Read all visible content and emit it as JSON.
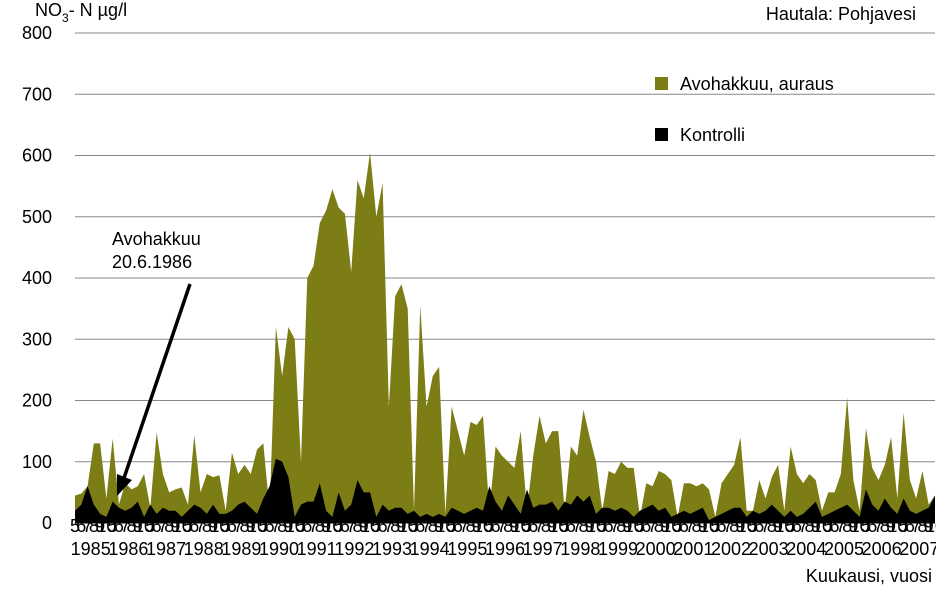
{
  "chart_data": {
    "type": "area",
    "title": "Hautala: Pohjavesi",
    "y_label": [
      "NO",
      "3",
      "- N µg/l"
    ],
    "x_label": "Kuukausi, vuosi",
    "annotation": [
      "Avohakkuu",
      "20.6.1986"
    ],
    "years": [
      "1985",
      "1986",
      "1987",
      "1988",
      "1989",
      "1990",
      "1991",
      "1992",
      "1993",
      "1994",
      "1995",
      "1996",
      "1997",
      "1998",
      "1999",
      "2000",
      "2001",
      "2002",
      "2003",
      "2004",
      "2005",
      "2006",
      "2007"
    ],
    "categories": [
      "5",
      "6",
      "7",
      "8",
      "9",
      "10",
      "5",
      "6",
      "7",
      "8",
      "9",
      "10",
      "5",
      "6",
      "7",
      "8",
      "9",
      "10",
      "5",
      "6",
      "7",
      "8",
      "9",
      "10",
      "5",
      "6",
      "7",
      "8",
      "9",
      "10",
      "5",
      "6",
      "7",
      "8",
      "9",
      "10",
      "5",
      "6",
      "7",
      "8",
      "9",
      "10",
      "5",
      "6",
      "7",
      "8",
      "9",
      "10",
      "5",
      "6",
      "7",
      "8",
      "9",
      "10",
      "5",
      "6",
      "7",
      "8",
      "9",
      "10",
      "5",
      "6",
      "7",
      "8",
      "9",
      "10",
      "5",
      "6",
      "7",
      "8",
      "9",
      "10",
      "5",
      "6",
      "7",
      "8",
      "9",
      "10",
      "5",
      "6",
      "7",
      "8",
      "9",
      "10",
      "5",
      "6",
      "7",
      "8",
      "9",
      "10",
      "5",
      "6",
      "7",
      "8",
      "9",
      "10",
      "5",
      "6",
      "7",
      "8",
      "9",
      "10",
      "5",
      "6",
      "7",
      "8",
      "9",
      "10",
      "5",
      "6",
      "7",
      "8",
      "9",
      "10",
      "5",
      "6",
      "7",
      "8",
      "9",
      "10",
      "5",
      "6",
      "7",
      "8",
      "9",
      "10",
      "5",
      "6",
      "7",
      "8",
      "9",
      "10",
      "5",
      "6",
      "7",
      "8",
      "9",
      "10"
    ],
    "series": [
      {
        "name": "Avohakkuu, auraus",
        "color": "#7d7d16",
        "values": [
          45,
          48,
          60,
          130,
          130,
          40,
          138,
          30,
          65,
          55,
          60,
          80,
          25,
          148,
          80,
          50,
          55,
          58,
          30,
          143,
          50,
          80,
          75,
          78,
          20,
          115,
          80,
          95,
          80,
          120,
          130,
          20,
          320,
          240,
          320,
          300,
          100,
          400,
          420,
          490,
          510,
          545,
          515,
          505,
          410,
          560,
          530,
          605,
          500,
          555,
          190,
          370,
          390,
          350,
          20,
          355,
          190,
          240,
          255,
          15,
          190,
          150,
          110,
          165,
          160,
          175,
          20,
          125,
          110,
          100,
          90,
          150,
          20,
          110,
          175,
          130,
          150,
          150,
          20,
          125,
          110,
          185,
          140,
          100,
          20,
          85,
          80,
          100,
          90,
          90,
          10,
          65,
          60,
          85,
          80,
          70,
          10,
          65,
          65,
          60,
          65,
          55,
          10,
          65,
          80,
          95,
          140,
          20,
          20,
          70,
          40,
          75,
          95,
          20,
          125,
          80,
          65,
          80,
          70,
          20,
          50,
          50,
          80,
          205,
          70,
          20,
          155,
          90,
          70,
          95,
          140,
          40,
          180,
          70,
          40,
          85,
          30,
          45
        ]
      },
      {
        "name": "Kontrolli",
        "color": "#000000",
        "values": [
          20,
          30,
          60,
          30,
          15,
          10,
          35,
          25,
          20,
          25,
          35,
          10,
          30,
          15,
          25,
          20,
          20,
          10,
          20,
          30,
          25,
          15,
          30,
          15,
          15,
          20,
          30,
          35,
          25,
          15,
          40,
          60,
          105,
          100,
          75,
          10,
          30,
          35,
          35,
          65,
          20,
          10,
          50,
          20,
          30,
          70,
          50,
          50,
          10,
          30,
          20,
          25,
          25,
          15,
          20,
          10,
          15,
          10,
          15,
          10,
          25,
          20,
          15,
          20,
          25,
          20,
          60,
          35,
          20,
          45,
          30,
          15,
          55,
          25,
          30,
          30,
          35,
          20,
          35,
          30,
          45,
          35,
          45,
          15,
          25,
          25,
          20,
          25,
          20,
          10,
          20,
          25,
          30,
          20,
          25,
          10,
          15,
          20,
          15,
          20,
          25,
          5,
          10,
          15,
          20,
          25,
          25,
          10,
          20,
          15,
          20,
          30,
          20,
          10,
          20,
          10,
          15,
          25,
          35,
          10,
          15,
          20,
          25,
          30,
          20,
          10,
          55,
          30,
          20,
          40,
          25,
          15,
          40,
          20,
          15,
          20,
          25,
          45
        ]
      }
    ],
    "ylim": [
      0,
      800
    ],
    "yticks": [
      0,
      100,
      200,
      300,
      400,
      500,
      600,
      700,
      800
    ],
    "grid": true,
    "legend": "upper right"
  }
}
